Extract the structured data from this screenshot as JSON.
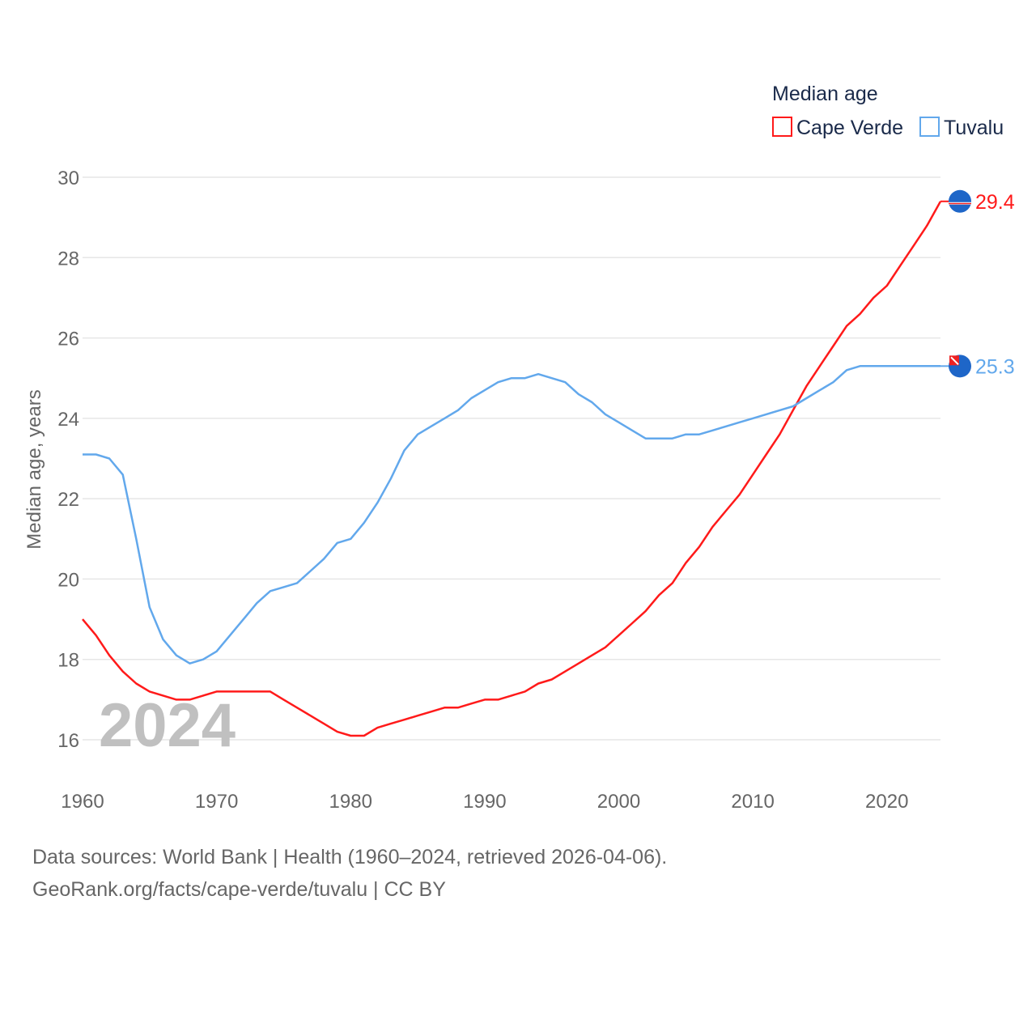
{
  "chart_data": {
    "type": "line",
    "legend_title": "Median age",
    "legend_position": "top-right",
    "ylabel": "Median age, years",
    "xlabel": "",
    "ylim": [
      15.2,
      30
    ],
    "xlim": [
      1960,
      2024
    ],
    "yticks": [
      16,
      18,
      20,
      22,
      24,
      26,
      28,
      30
    ],
    "xticks": [
      1960,
      1970,
      1980,
      1990,
      2000,
      2010,
      2020
    ],
    "grid": true,
    "year_watermark": "2024",
    "x": [
      1960,
      1961,
      1962,
      1963,
      1964,
      1965,
      1966,
      1967,
      1968,
      1969,
      1970,
      1971,
      1972,
      1973,
      1974,
      1975,
      1976,
      1977,
      1978,
      1979,
      1980,
      1981,
      1982,
      1983,
      1984,
      1985,
      1986,
      1987,
      1988,
      1989,
      1990,
      1991,
      1992,
      1993,
      1994,
      1995,
      1996,
      1997,
      1998,
      1999,
      2000,
      2001,
      2002,
      2003,
      2004,
      2005,
      2006,
      2007,
      2008,
      2009,
      2010,
      2011,
      2012,
      2013,
      2014,
      2015,
      2016,
      2017,
      2018,
      2019,
      2020,
      2021,
      2022,
      2023,
      2024
    ],
    "series": [
      {
        "name": "Cape Verde",
        "color": "#ff1a1a",
        "end_label": "29.4",
        "values": [
          19.0,
          18.6,
          18.1,
          17.7,
          17.4,
          17.2,
          17.1,
          17.0,
          17.0,
          17.1,
          17.2,
          17.2,
          17.2,
          17.2,
          17.2,
          17.0,
          16.8,
          16.6,
          16.4,
          16.2,
          16.1,
          16.1,
          16.3,
          16.4,
          16.5,
          16.6,
          16.7,
          16.8,
          16.8,
          16.9,
          17.0,
          17.0,
          17.1,
          17.2,
          17.4,
          17.5,
          17.7,
          17.9,
          18.1,
          18.3,
          18.6,
          18.9,
          19.2,
          19.6,
          19.9,
          20.4,
          20.8,
          21.3,
          21.7,
          22.1,
          22.6,
          23.1,
          23.6,
          24.2,
          24.8,
          25.3,
          25.8,
          26.3,
          26.6,
          27.0,
          27.3,
          27.8,
          28.3,
          28.8,
          29.4
        ]
      },
      {
        "name": "Tuvalu",
        "color": "#62a8ec",
        "end_label": "25.3",
        "values": [
          23.1,
          23.1,
          23.0,
          22.6,
          21.0,
          19.3,
          18.5,
          18.1,
          17.9,
          18.0,
          18.2,
          18.6,
          19.0,
          19.4,
          19.7,
          19.8,
          19.9,
          20.2,
          20.5,
          20.9,
          21.0,
          21.4,
          21.9,
          22.5,
          23.2,
          23.6,
          23.8,
          24.0,
          24.2,
          24.5,
          24.7,
          24.9,
          25.0,
          25.0,
          25.1,
          25.0,
          24.9,
          24.6,
          24.4,
          24.1,
          23.9,
          23.7,
          23.5,
          23.5,
          23.5,
          23.6,
          23.6,
          23.7,
          23.8,
          23.9,
          24.0,
          24.1,
          24.2,
          24.3,
          24.5,
          24.7,
          24.9,
          25.2,
          25.3,
          25.3,
          25.3,
          25.3,
          25.3,
          25.3,
          25.3
        ]
      }
    ]
  },
  "footer": {
    "line1": "Data sources: World Bank | Health (1960–2024, retrieved 2026-04-06).",
    "line2": "GeoRank.org/facts/cape-verde/tuvalu | CC BY"
  }
}
